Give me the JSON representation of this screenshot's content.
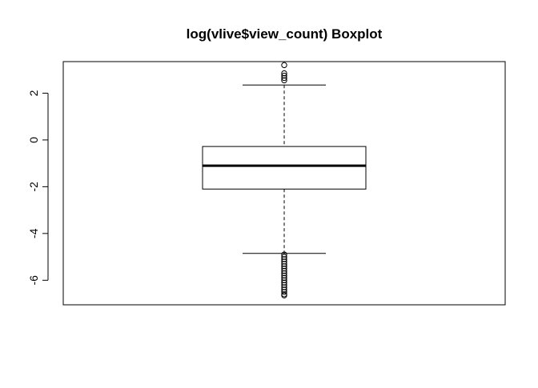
{
  "chart_data": {
    "type": "boxplot",
    "title": "log(vlive$view_count) Boxplot",
    "xlabel": "",
    "ylabel": "",
    "ylim": [
      -7.05,
      3.35
    ],
    "y_ticks": [
      2,
      0,
      -2,
      -4,
      -6
    ],
    "y_tick_labels": [
      "2",
      "0",
      "-2",
      "-4",
      "-6"
    ],
    "grid": false,
    "box": {
      "whisker_low": -4.85,
      "q1": -2.1,
      "median": -1.1,
      "q3": -0.28,
      "whisker_high": 2.35
    },
    "outliers_high": [
      3.2,
      2.85,
      2.75,
      2.65,
      2.55
    ],
    "outliers_low": [
      -4.9,
      -5.0,
      -5.1,
      -5.2,
      -5.3,
      -5.4,
      -5.5,
      -5.6,
      -5.7,
      -5.8,
      -5.9,
      -6.0,
      -6.1,
      -6.2,
      -6.3,
      -6.4,
      -6.5,
      -6.6,
      -6.65
    ]
  }
}
